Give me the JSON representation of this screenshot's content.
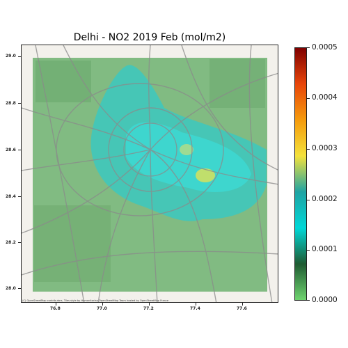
{
  "map": {
    "title": "Delhi - NO2 2019 Feb (mol/m2)",
    "attribution": "(C) OpenStreetMap contributors, Tiles style by Humanitarian OpenStreetMap Team hosted by OpenStreetMap France",
    "y_ticks": [
      "29.0",
      "28.8",
      "28.6",
      "28.4",
      "28.2",
      "28.0"
    ],
    "x_ticks": [
      "76.8",
      "77.0",
      "77.2",
      "77.4",
      "77.6"
    ]
  },
  "colorbar": {
    "ticks": [
      "0.0005",
      "0.0004",
      "0.0003",
      "0.0002",
      "0.0001",
      "0.0000"
    ],
    "colors": [
      "#7f0000",
      "#e8450a",
      "#f59b0c",
      "#f4e23c",
      "#1fa3a3",
      "#00d7d7",
      "#1f5b32",
      "#6fd46f"
    ]
  }
}
